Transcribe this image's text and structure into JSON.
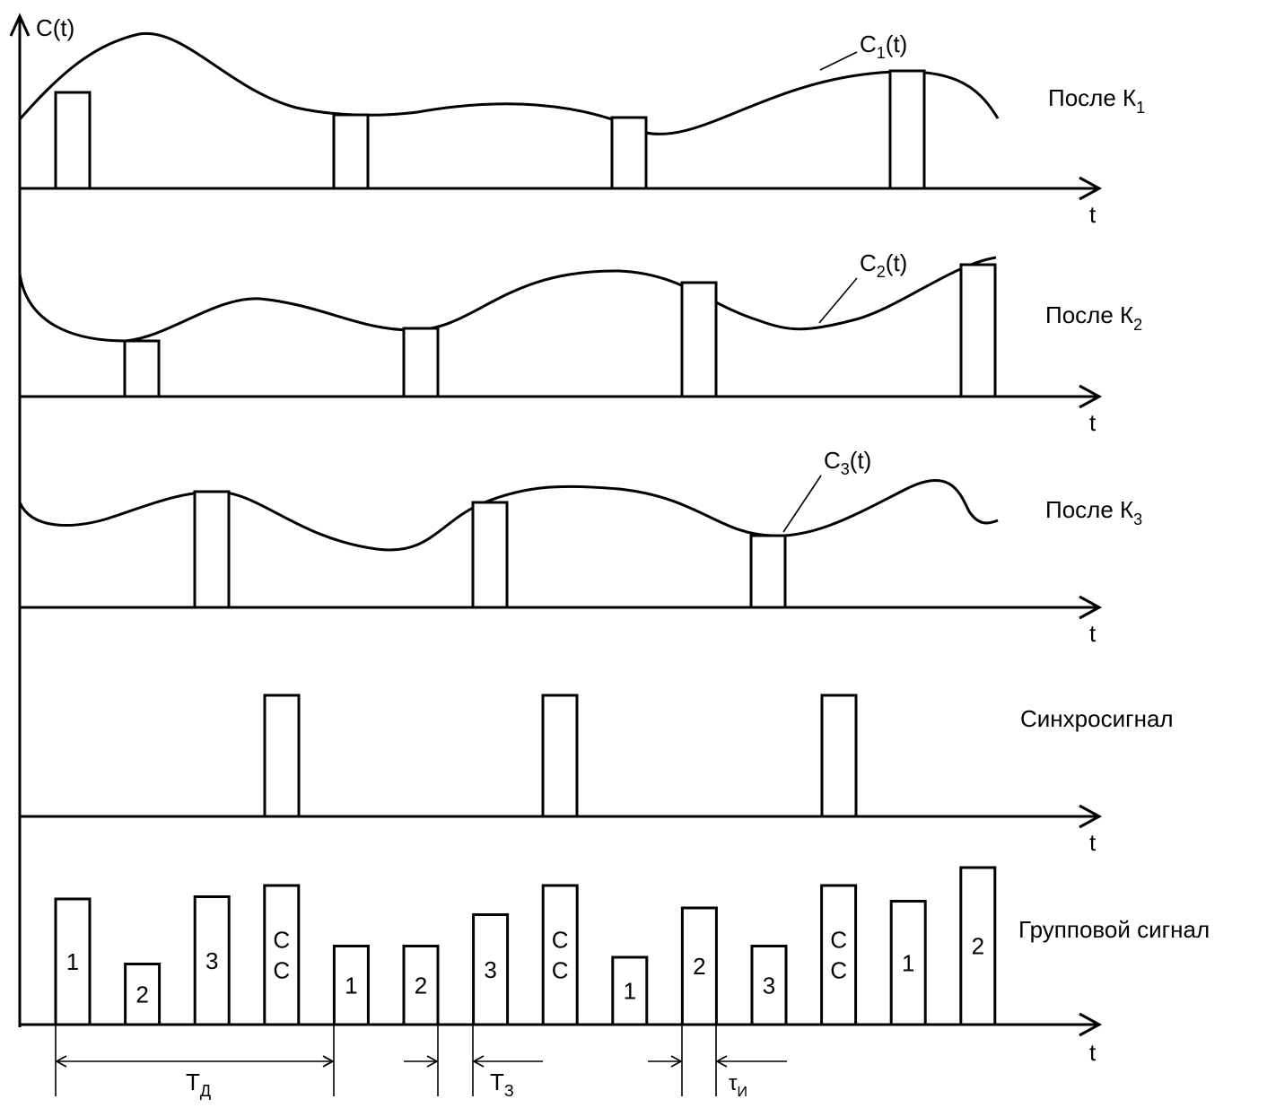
{
  "y_axis_label": "C(t)",
  "axis_label": "t",
  "panels": [
    {
      "name": "После К",
      "sub": "1",
      "curve_label": "C",
      "curve_sub": "1",
      "curve_label_tail": "(t)"
    },
    {
      "name": "После К",
      "sub": "2",
      "curve_label": "C",
      "curve_sub": "2",
      "curve_label_tail": "(t)"
    },
    {
      "name": "После К",
      "sub": "3",
      "curve_label": "C",
      "curve_sub": "3",
      "curve_label_tail": "(t)"
    },
    {
      "name": "Синхросигнал"
    },
    {
      "name": "Групповой сигнал"
    }
  ],
  "group_pulses": [
    {
      "label": "1",
      "level": 0.56
    },
    {
      "label": "2",
      "level": 0.27
    },
    {
      "label": "3",
      "level": 0.57
    },
    {
      "label": "С\nС",
      "level": 0.62
    },
    {
      "label": "1",
      "level": 0.35
    },
    {
      "label": "2",
      "level": 0.35
    },
    {
      "label": "3",
      "level": 0.49
    },
    {
      "label": "С\nС",
      "level": 0.62
    },
    {
      "label": "1",
      "level": 0.3
    },
    {
      "label": "2",
      "level": 0.52
    },
    {
      "label": "3",
      "level": 0.35
    },
    {
      "label": "С\nС",
      "level": 0.62
    },
    {
      "label": "1",
      "level": 0.55
    },
    {
      "label": "2",
      "level": 0.7
    }
  ],
  "dimensions": {
    "td": {
      "main": "T",
      "sub": "Д"
    },
    "tz": {
      "main": "T",
      "sub": "З"
    },
    "tau": {
      "main": "τ",
      "sub": "И"
    }
  }
}
